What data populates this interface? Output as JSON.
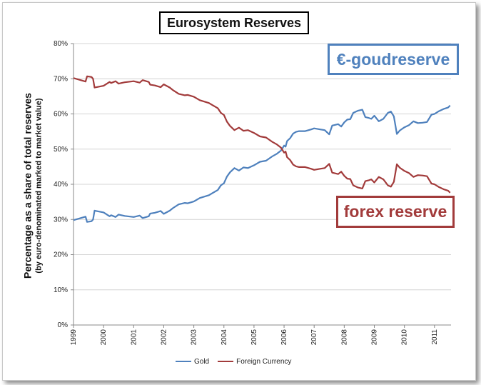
{
  "chart_data": {
    "type": "line",
    "title": "Eurosystem Reserves",
    "ylabel_line1": "Percentage as a share of total reserves",
    "ylabel_line2": "(by euro-denominated marked to market value)",
    "xlabel": "",
    "x_range": [
      1999.0,
      2011.55
    ],
    "ylim": [
      0,
      80
    ],
    "y_ticks": [
      0,
      10,
      20,
      30,
      40,
      50,
      60,
      70,
      80
    ],
    "y_tick_labels": [
      "0%",
      "10%",
      "20%",
      "30%",
      "40%",
      "50%",
      "60%",
      "70%",
      "80%"
    ],
    "x_ticks": [
      "1999",
      "2000",
      "2001",
      "2002",
      "2003",
      "2004",
      "2005",
      "2006",
      "2007",
      "2008",
      "2009",
      "2010",
      "2011"
    ],
    "grid": "horizontal",
    "legend_position": "bottom",
    "series": [
      {
        "name": "Gold",
        "color": "#4f81bd",
        "x": [
          1999.0,
          1999.2,
          1999.4,
          1999.45,
          1999.6,
          1999.65,
          1999.7,
          2000.0,
          2000.2,
          2000.25,
          2000.4,
          2000.5,
          2000.7,
          2000.8,
          2001.0,
          2001.2,
          2001.3,
          2001.5,
          2001.55,
          2001.7,
          2001.9,
          2002.0,
          2002.2,
          2002.3,
          2002.5,
          2002.7,
          2002.8,
          2003.0,
          2003.2,
          2003.5,
          2003.6,
          2003.8,
          2003.9,
          2004.0,
          2004.1,
          2004.2,
          2004.35,
          2004.5,
          2004.65,
          2004.8,
          2005.0,
          2005.2,
          2005.4,
          2005.6,
          2005.75,
          2005.9,
          2006.0,
          2006.05,
          2006.1,
          2006.2,
          2006.3,
          2006.4,
          2006.5,
          2006.7,
          2006.9,
          2007.0,
          2007.2,
          2007.35,
          2007.5,
          2007.6,
          2007.8,
          2007.9,
          2008.0,
          2008.1,
          2008.2,
          2008.3,
          2008.45,
          2008.6,
          2008.7,
          2008.8,
          2008.9,
          2009.0,
          2009.15,
          2009.3,
          2009.45,
          2009.55,
          2009.65,
          2009.75,
          2009.85,
          2010.0,
          2010.15,
          2010.3,
          2010.45,
          2010.6,
          2010.75,
          2010.9,
          2011.0,
          2011.15,
          2011.3,
          2011.45,
          2011.52
        ],
        "y": [
          29.8,
          30.3,
          30.8,
          29.3,
          29.5,
          30.0,
          32.5,
          32.0,
          30.9,
          31.2,
          30.7,
          31.4,
          31.0,
          30.9,
          30.7,
          31.1,
          30.4,
          30.9,
          31.7,
          31.9,
          32.4,
          31.6,
          32.5,
          33.2,
          34.3,
          34.7,
          34.6,
          35.1,
          36.1,
          36.9,
          37.4,
          38.4,
          39.7,
          40.3,
          42.2,
          43.4,
          44.6,
          43.9,
          44.8,
          44.6,
          45.4,
          46.4,
          46.7,
          47.9,
          48.6,
          49.6,
          51.0,
          50.7,
          52.3,
          53.1,
          54.4,
          54.9,
          55.1,
          55.1,
          55.6,
          55.9,
          55.6,
          55.4,
          54.2,
          56.7,
          57.1,
          56.4,
          57.6,
          58.4,
          58.5,
          60.3,
          60.9,
          61.2,
          59.1,
          58.9,
          58.6,
          59.5,
          57.9,
          58.6,
          60.3,
          60.7,
          59.3,
          54.3,
          55.3,
          56.2,
          56.8,
          57.9,
          57.4,
          57.5,
          57.7,
          59.8,
          60.0,
          60.8,
          61.4,
          61.8,
          62.4
        ]
      },
      {
        "name": "Foreign Currency",
        "color": "#a23b3b",
        "x": [
          1999.0,
          1999.2,
          1999.4,
          1999.45,
          1999.6,
          1999.65,
          1999.7,
          2000.0,
          2000.2,
          2000.25,
          2000.4,
          2000.5,
          2000.7,
          2000.8,
          2001.0,
          2001.2,
          2001.3,
          2001.5,
          2001.55,
          2001.7,
          2001.9,
          2002.0,
          2002.2,
          2002.3,
          2002.5,
          2002.7,
          2002.8,
          2003.0,
          2003.2,
          2003.5,
          2003.6,
          2003.8,
          2003.9,
          2004.0,
          2004.1,
          2004.2,
          2004.35,
          2004.5,
          2004.65,
          2004.8,
          2005.0,
          2005.2,
          2005.4,
          2005.6,
          2005.75,
          2005.9,
          2006.0,
          2006.05,
          2006.1,
          2006.2,
          2006.3,
          2006.4,
          2006.5,
          2006.7,
          2006.9,
          2007.0,
          2007.2,
          2007.35,
          2007.5,
          2007.6,
          2007.8,
          2007.9,
          2008.0,
          2008.1,
          2008.2,
          2008.3,
          2008.45,
          2008.6,
          2008.7,
          2008.8,
          2008.9,
          2009.0,
          2009.15,
          2009.3,
          2009.45,
          2009.55,
          2009.65,
          2009.75,
          2009.85,
          2010.0,
          2010.15,
          2010.3,
          2010.45,
          2010.6,
          2010.75,
          2010.9,
          2011.0,
          2011.15,
          2011.3,
          2011.45,
          2011.52
        ],
        "y": [
          70.2,
          69.7,
          69.2,
          70.7,
          70.5,
          70.0,
          67.5,
          68.0,
          69.1,
          68.8,
          69.3,
          68.6,
          69.0,
          69.1,
          69.3,
          68.9,
          69.6,
          69.1,
          68.3,
          68.1,
          67.6,
          68.4,
          67.5,
          66.8,
          65.7,
          65.3,
          65.4,
          64.9,
          63.9,
          63.1,
          62.6,
          61.6,
          60.3,
          59.7,
          57.8,
          56.6,
          55.4,
          56.1,
          55.2,
          55.4,
          54.6,
          53.6,
          53.3,
          52.1,
          51.4,
          50.4,
          49.0,
          49.3,
          47.7,
          46.9,
          45.6,
          45.1,
          44.9,
          44.9,
          44.4,
          44.1,
          44.4,
          44.6,
          45.8,
          43.3,
          42.9,
          43.6,
          42.4,
          41.6,
          41.5,
          39.7,
          39.1,
          38.8,
          40.9,
          41.1,
          41.4,
          40.5,
          42.1,
          41.4,
          39.7,
          39.3,
          40.7,
          45.7,
          44.7,
          43.8,
          43.2,
          42.1,
          42.6,
          42.5,
          42.3,
          40.2,
          40.0,
          39.2,
          38.6,
          38.2,
          37.6
        ]
      }
    ]
  },
  "annotations": {
    "gold_label": "€-goudreserve",
    "forex_label": "forex reserve"
  }
}
